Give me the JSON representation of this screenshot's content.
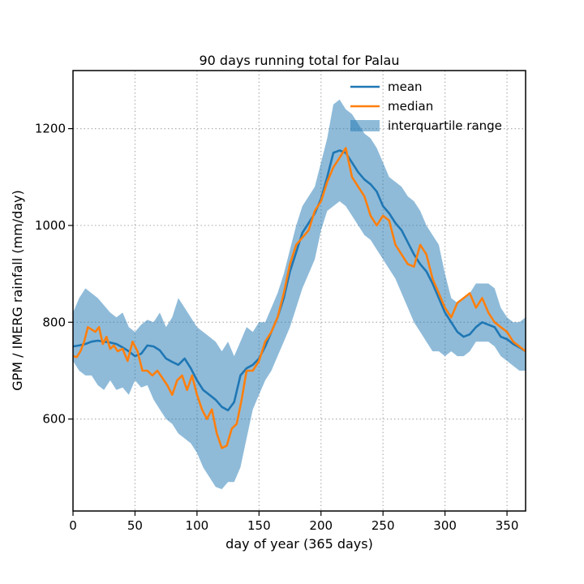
{
  "chart_data": {
    "type": "line",
    "title": "90 days running total for Palau",
    "xlabel": "day of year (365 days)",
    "ylabel": "GPM / IMERG rainfall (mm/day)",
    "xlim": [
      0,
      365
    ],
    "ylim": [
      410,
      1320
    ],
    "xticks": [
      0,
      50,
      100,
      150,
      200,
      250,
      300,
      350
    ],
    "yticks": [
      600,
      800,
      1000,
      1200
    ],
    "grid": true,
    "grid_style": "dotted",
    "legend_position": "top-right",
    "series": [
      {
        "name": "mean",
        "color": "#1f77b4",
        "x": [
          0,
          5,
          10,
          15,
          20,
          25,
          30,
          35,
          40,
          45,
          50,
          55,
          60,
          65,
          70,
          75,
          80,
          85,
          90,
          95,
          100,
          105,
          110,
          115,
          120,
          125,
          130,
          135,
          140,
          145,
          150,
          155,
          160,
          165,
          170,
          175,
          180,
          185,
          190,
          195,
          200,
          205,
          210,
          215,
          220,
          225,
          230,
          235,
          240,
          245,
          250,
          255,
          260,
          265,
          270,
          275,
          280,
          285,
          290,
          295,
          300,
          305,
          310,
          315,
          320,
          325,
          330,
          335,
          340,
          345,
          350,
          355,
          360,
          365
        ],
        "y": [
          750,
          752,
          755,
          760,
          762,
          760,
          758,
          755,
          748,
          740,
          730,
          735,
          752,
          750,
          742,
          725,
          718,
          712,
          725,
          705,
          680,
          660,
          650,
          640,
          625,
          618,
          635,
          690,
          705,
          712,
          725,
          750,
          780,
          810,
          850,
          905,
          945,
          985,
          1005,
          1025,
          1055,
          1100,
          1150,
          1155,
          1150,
          1130,
          1110,
          1095,
          1085,
          1070,
          1040,
          1025,
          1005,
          990,
          965,
          940,
          920,
          905,
          880,
          850,
          820,
          800,
          780,
          770,
          775,
          790,
          800,
          795,
          790,
          770,
          765,
          755,
          748,
          740
        ]
      },
      {
        "name": "median",
        "color": "#ff7f0e",
        "x": [
          0,
          3,
          6,
          9,
          12,
          15,
          18,
          21,
          24,
          27,
          30,
          33,
          36,
          40,
          44,
          48,
          52,
          56,
          60,
          64,
          68,
          72,
          76,
          80,
          84,
          88,
          92,
          96,
          100,
          104,
          108,
          112,
          116,
          120,
          124,
          128,
          132,
          136,
          140,
          145,
          150,
          155,
          160,
          165,
          170,
          175,
          180,
          185,
          190,
          195,
          200,
          205,
          210,
          215,
          220,
          225,
          230,
          235,
          240,
          245,
          250,
          255,
          260,
          265,
          270,
          275,
          280,
          285,
          290,
          295,
          300,
          305,
          310,
          315,
          320,
          325,
          330,
          335,
          340,
          345,
          350,
          355,
          360,
          365
        ],
        "y": [
          730,
          728,
          740,
          760,
          790,
          785,
          780,
          790,
          755,
          770,
          745,
          752,
          740,
          745,
          720,
          760,
          740,
          700,
          700,
          690,
          700,
          685,
          670,
          650,
          680,
          690,
          660,
          690,
          650,
          620,
          600,
          620,
          570,
          540,
          545,
          580,
          590,
          640,
          700,
          700,
          720,
          760,
          780,
          810,
          860,
          920,
          960,
          975,
          990,
          1030,
          1050,
          1090,
          1120,
          1140,
          1160,
          1100,
          1080,
          1060,
          1020,
          1000,
          1020,
          1010,
          960,
          940,
          920,
          915,
          960,
          940,
          890,
          860,
          830,
          810,
          840,
          850,
          860,
          830,
          850,
          820,
          800,
          790,
          780,
          760,
          750,
          740
        ]
      }
    ],
    "band": {
      "name": "interquartile range",
      "color": "#1f77b4",
      "opacity": 0.5,
      "x": [
        0,
        5,
        10,
        15,
        20,
        25,
        30,
        35,
        40,
        45,
        50,
        55,
        60,
        65,
        70,
        75,
        80,
        85,
        90,
        95,
        100,
        105,
        110,
        115,
        120,
        125,
        130,
        135,
        140,
        145,
        150,
        155,
        160,
        165,
        170,
        175,
        180,
        185,
        190,
        195,
        200,
        205,
        210,
        215,
        220,
        225,
        230,
        235,
        240,
        245,
        250,
        255,
        260,
        265,
        270,
        275,
        280,
        285,
        290,
        295,
        300,
        305,
        310,
        315,
        320,
        325,
        330,
        335,
        340,
        345,
        350,
        355,
        360,
        365
      ],
      "upper": [
        820,
        850,
        870,
        860,
        850,
        835,
        820,
        810,
        820,
        790,
        780,
        795,
        805,
        800,
        820,
        790,
        810,
        850,
        830,
        810,
        790,
        780,
        770,
        760,
        740,
        760,
        730,
        760,
        790,
        780,
        800,
        800,
        830,
        860,
        900,
        950,
        1000,
        1040,
        1060,
        1080,
        1130,
        1180,
        1250,
        1260,
        1240,
        1230,
        1210,
        1190,
        1180,
        1160,
        1130,
        1100,
        1090,
        1080,
        1060,
        1050,
        1030,
        1000,
        980,
        960,
        900,
        850,
        840,
        850,
        860,
        880,
        880,
        880,
        870,
        830,
        810,
        800,
        800,
        810
      ],
      "lower": [
        720,
        700,
        690,
        690,
        670,
        660,
        680,
        660,
        665,
        650,
        680,
        665,
        670,
        640,
        620,
        600,
        590,
        570,
        560,
        550,
        530,
        500,
        480,
        460,
        455,
        470,
        470,
        500,
        560,
        620,
        650,
        680,
        700,
        730,
        760,
        790,
        830,
        870,
        900,
        930,
        990,
        1030,
        1040,
        1050,
        1040,
        1020,
        1000,
        980,
        970,
        950,
        930,
        910,
        890,
        860,
        830,
        800,
        780,
        760,
        740,
        740,
        730,
        740,
        730,
        730,
        740,
        760,
        760,
        760,
        750,
        730,
        720,
        710,
        700,
        700
      ]
    }
  }
}
